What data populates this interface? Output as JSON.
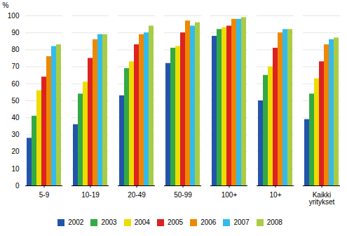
{
  "chart_data": {
    "type": "bar",
    "ylabel": "%",
    "categories": [
      "5-9",
      "10-19",
      "20-49",
      "50-99",
      "100+",
      "10+",
      "Kaikki\nyritykset"
    ],
    "series": [
      {
        "name": "2002",
        "color": "#2255AA",
        "values": [
          28,
          36,
          53,
          72,
          88,
          50,
          39
        ]
      },
      {
        "name": "2003",
        "color": "#33AA44",
        "values": [
          41,
          54,
          69,
          81,
          92,
          65,
          54
        ]
      },
      {
        "name": "2004",
        "color": "#EEDD00",
        "values": [
          56,
          61,
          73,
          82,
          93,
          70,
          63
        ]
      },
      {
        "name": "2005",
        "color": "#DD2222",
        "values": [
          64,
          75,
          83,
          90,
          94,
          81,
          73
        ]
      },
      {
        "name": "2006",
        "color": "#EE8800",
        "values": [
          76,
          86,
          89,
          97,
          98,
          90,
          83
        ]
      },
      {
        "name": "2007",
        "color": "#33BBEE",
        "values": [
          82,
          89,
          90,
          94,
          98,
          92,
          86
        ]
      },
      {
        "name": "2008",
        "color": "#AACC44",
        "values": [
          83,
          89,
          94,
          96,
          99,
          92,
          87
        ]
      }
    ],
    "ylim": [
      0,
      100
    ],
    "yticks": [
      0,
      10,
      20,
      30,
      40,
      50,
      60,
      70,
      80,
      90,
      100
    ],
    "grid": true,
    "legend": "bottom"
  }
}
